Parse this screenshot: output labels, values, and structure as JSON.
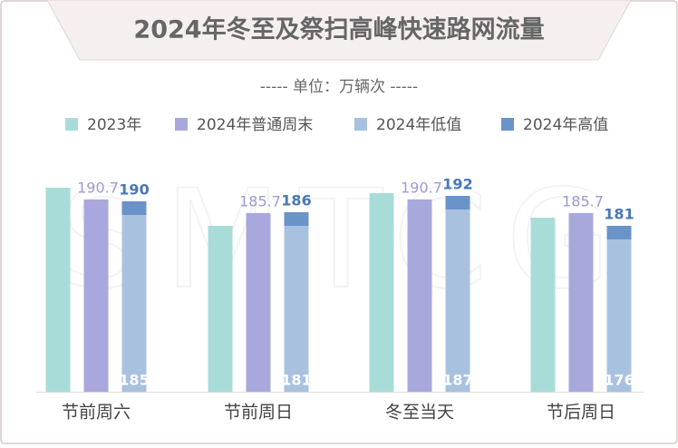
{
  "chart_data": {
    "type": "bar",
    "title": "2024年冬至及祭扫高峰快速路网流量",
    "subtitle": "----- 单位：万辆次 -----",
    "watermark": "SMTCG",
    "categories": [
      "节前周六",
      "节前周日",
      "冬至当天",
      "节后周日"
    ],
    "ylim": [
      120,
      195
    ],
    "series": [
      {
        "name": "2023年",
        "color": "#a8dcd9",
        "values": [
          195,
          181,
          193,
          184
        ]
      },
      {
        "name": "2024年普通周末",
        "color": "#a9a8dc",
        "label_color": "#9d9cd2",
        "values": [
          190.7,
          185.7,
          190.7,
          185.7
        ]
      },
      {
        "name": "2024年低值",
        "color": "#a8c1df",
        "label_color": "#ffffff",
        "values": [
          185,
          181,
          187,
          176
        ]
      },
      {
        "name": "2024年高值",
        "color": "#6a93c8",
        "label_color": "#4a78b5",
        "values": [
          190,
          186,
          192,
          181
        ]
      }
    ]
  }
}
